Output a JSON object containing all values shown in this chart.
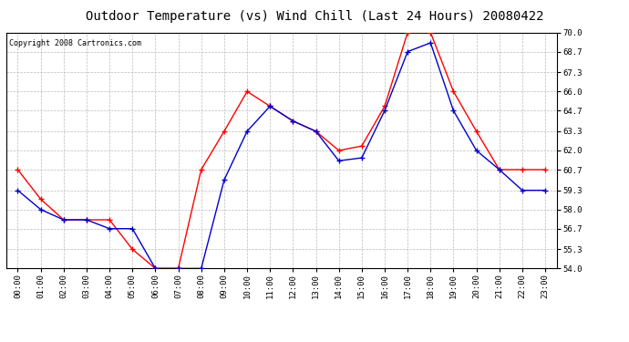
{
  "title": "Outdoor Temperature (vs) Wind Chill (Last 24 Hours) 20080422",
  "copyright": "Copyright 2008 Cartronics.com",
  "x_labels": [
    "00:00",
    "01:00",
    "02:00",
    "03:00",
    "04:00",
    "05:00",
    "06:00",
    "07:00",
    "08:00",
    "09:00",
    "10:00",
    "11:00",
    "12:00",
    "13:00",
    "14:00",
    "15:00",
    "16:00",
    "17:00",
    "18:00",
    "19:00",
    "20:00",
    "21:00",
    "22:00",
    "23:00"
  ],
  "temp_red": [
    60.7,
    58.7,
    57.3,
    57.3,
    57.3,
    55.3,
    54.0,
    54.0,
    60.7,
    63.3,
    66.0,
    65.0,
    64.0,
    63.3,
    62.0,
    62.3,
    65.0,
    70.0,
    70.0,
    66.0,
    63.3,
    60.7,
    60.7,
    60.7
  ],
  "wind_chill_blue": [
    59.3,
    58.0,
    57.3,
    57.3,
    56.7,
    56.7,
    54.0,
    54.0,
    54.0,
    60.0,
    63.3,
    65.0,
    64.0,
    63.3,
    61.3,
    61.5,
    64.7,
    68.7,
    69.3,
    64.7,
    62.0,
    60.7,
    59.3,
    59.3
  ],
  "ylim": [
    54.0,
    70.0
  ],
  "yticks": [
    54.0,
    55.3,
    56.7,
    58.0,
    59.3,
    60.7,
    62.0,
    63.3,
    64.7,
    66.0,
    67.3,
    68.7,
    70.0
  ],
  "red_color": "#FF0000",
  "blue_color": "#0000CC",
  "bg_color": "#FFFFFF",
  "grid_color": "#BBBBBB",
  "title_fontsize": 10,
  "copyright_fontsize": 6,
  "tick_fontsize": 6.5,
  "line_width": 1.0,
  "marker_size": 4
}
